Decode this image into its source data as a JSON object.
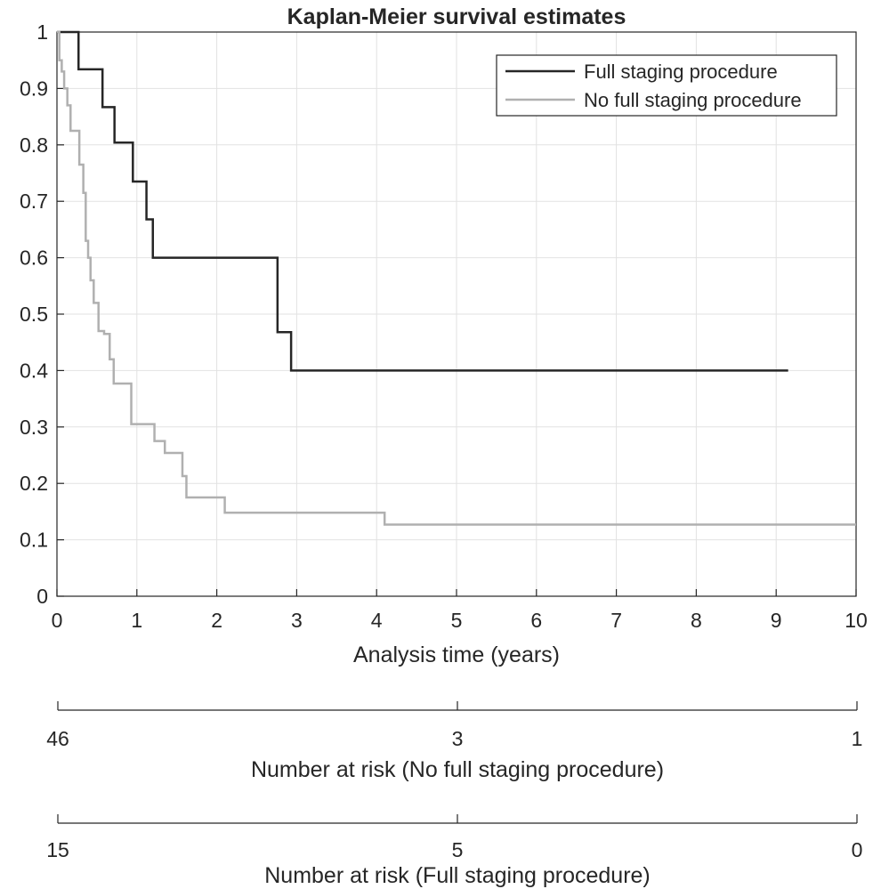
{
  "chart_data": {
    "type": "line",
    "title": "Kaplan-Meier survival estimates",
    "xlabel": "Analysis time (years)",
    "ylabel": "",
    "xlim": [
      0,
      10
    ],
    "ylim": [
      0,
      1
    ],
    "grid": true,
    "legend_position": "top-right",
    "x_ticks": [
      "0",
      "1",
      "2",
      "3",
      "4",
      "5",
      "6",
      "7",
      "8",
      "9",
      "10"
    ],
    "y_ticks": [
      "0",
      "0.1",
      "0.2",
      "0.3",
      "0.4",
      "0.5",
      "0.6",
      "0.7",
      "0.8",
      "0.9",
      "1"
    ],
    "series": [
      {
        "name": "Full staging procedure",
        "color": "#262626",
        "step": true,
        "x": [
          0,
          0.27,
          0.57,
          0.72,
          0.95,
          1.12,
          1.2,
          2.76,
          2.93,
          9.15
        ],
        "y": [
          1,
          0.934,
          0.867,
          0.804,
          0.735,
          0.668,
          0.6,
          0.468,
          0.4,
          0.4
        ]
      },
      {
        "name": "No full staging procedure",
        "color": "#b0b0b0",
        "step": true,
        "x": [
          0,
          0.03,
          0.06,
          0.09,
          0.13,
          0.17,
          0.28,
          0.33,
          0.36,
          0.39,
          0.42,
          0.46,
          0.52,
          0.59,
          0.66,
          0.71,
          0.77,
          0.93,
          1.22,
          1.35,
          1.57,
          1.62,
          2.1,
          4.1,
          10.0
        ],
        "y": [
          1,
          0.95,
          0.93,
          0.9,
          0.87,
          0.825,
          0.765,
          0.715,
          0.63,
          0.6,
          0.56,
          0.52,
          0.47,
          0.465,
          0.42,
          0.377,
          0.377,
          0.305,
          0.275,
          0.254,
          0.213,
          0.175,
          0.148,
          0.127,
          0.127
        ]
      }
    ]
  },
  "risk_tables": [
    {
      "label": "Number at risk (No full staging procedure)",
      "tick_positions": [
        0,
        5,
        10
      ],
      "counts": [
        "46",
        "3",
        "1"
      ]
    },
    {
      "label": "Number at risk (Full staging procedure)",
      "tick_positions": [
        0,
        5,
        10
      ],
      "counts": [
        "15",
        "5",
        "0"
      ]
    }
  ]
}
